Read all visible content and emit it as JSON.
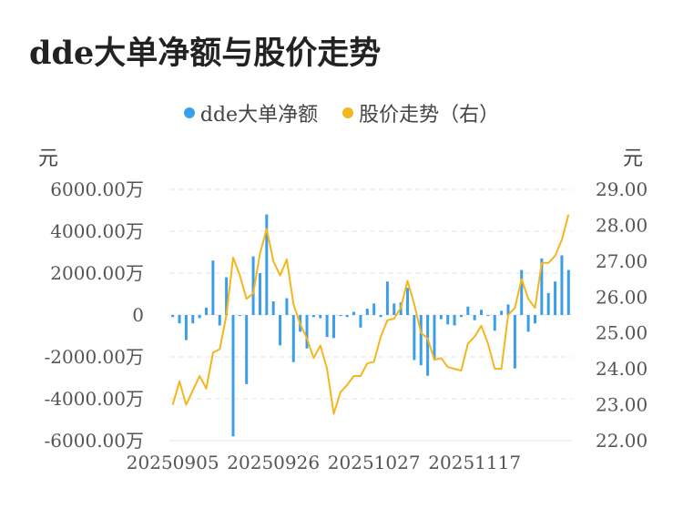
{
  "title": "dde大单净额与股价走势",
  "colors": {
    "bar": "#3b9ee8",
    "line": "#f5b51c",
    "grid": "#e6e6e6",
    "text": "#555555"
  },
  "chart_data": {
    "type": "bar+line",
    "title": "dde大单净额与股价走势",
    "legend": [
      "dde大单净额",
      "股价走势（右）"
    ],
    "left_unit": "元",
    "right_unit": "元",
    "left_axis": {
      "min": -6000,
      "max": 6000,
      "ticks": [
        6000,
        4000,
        2000,
        0,
        -2000,
        -4000,
        -6000
      ],
      "tick_labels": [
        "6000.00万",
        "4000.00万",
        "2000.00万",
        "0",
        "-2000.00万",
        "-4000.00万",
        "-6000.00万"
      ]
    },
    "right_axis": {
      "min": 22,
      "max": 29,
      "ticks": [
        29,
        28,
        27,
        26,
        25,
        24,
        23,
        22
      ],
      "tick_labels": [
        "29.00",
        "28.00",
        "27.00",
        "26.00",
        "25.00",
        "24.00",
        "23.00",
        "22.00"
      ]
    },
    "x_tick_labels": [
      "20250905",
      "20250926",
      "20251027",
      "20251117"
    ],
    "x_tick_indices": [
      0,
      15,
      30,
      45
    ],
    "series": [
      {
        "name": "dde大单净额",
        "type": "bar",
        "axis": "left",
        "values": [
          -100,
          -400,
          -1200,
          -400,
          -150,
          350,
          2600,
          -500,
          1800,
          -5800,
          -50,
          -3300,
          2800,
          2000,
          4800,
          650,
          -1450,
          800,
          -2250,
          -800,
          -1600,
          -100,
          -150,
          -1050,
          -1100,
          -50,
          -100,
          150,
          -600,
          300,
          550,
          -100,
          1600,
          550,
          600,
          1300,
          -2150,
          -2400,
          -2900,
          -2100,
          -200,
          -450,
          -500,
          -100,
          400,
          -250,
          250,
          -50,
          -750,
          200,
          500,
          -2550,
          2150,
          -800,
          -400,
          2700,
          1050,
          1600,
          2850,
          2150
        ]
      },
      {
        "name": "股价走势（右）",
        "type": "line",
        "axis": "right",
        "values": [
          23.0,
          23.65,
          23.0,
          23.4,
          23.8,
          23.45,
          24.45,
          24.55,
          25.5,
          27.1,
          26.6,
          25.95,
          26.1,
          27.2,
          27.9,
          27.0,
          26.6,
          27.05,
          25.8,
          25.25,
          24.85,
          24.3,
          24.65,
          24.0,
          22.75,
          23.35,
          23.55,
          23.8,
          23.8,
          24.15,
          24.2,
          24.9,
          25.35,
          25.4,
          25.7,
          26.45,
          25.8,
          25.0,
          24.85,
          24.25,
          24.3,
          24.05,
          24.0,
          23.95,
          24.7,
          24.9,
          25.2,
          24.7,
          24.0,
          24.0,
          25.5,
          25.7,
          26.5,
          25.95,
          25.7,
          26.95,
          26.95,
          27.15,
          27.6,
          28.3
        ]
      }
    ],
    "grid": true
  }
}
